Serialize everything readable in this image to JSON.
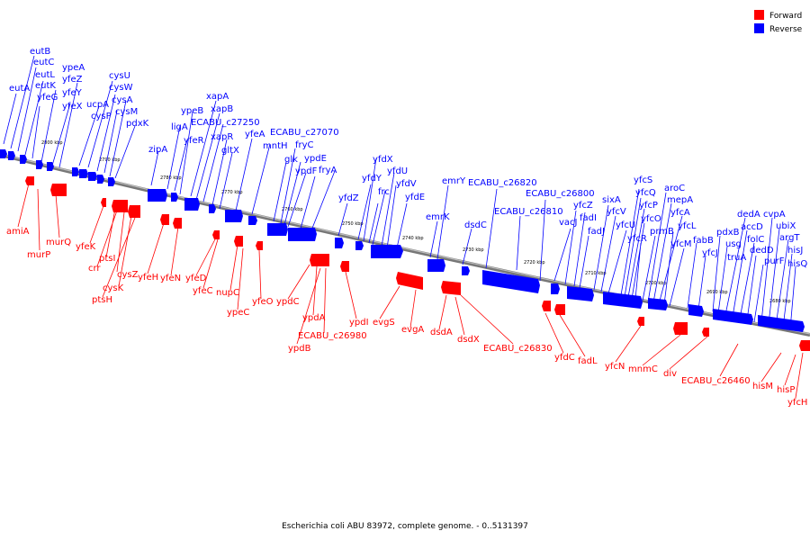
{
  "legend": [
    {
      "label": "Forward",
      "color": "#ff0000"
    },
    {
      "label": "Reverse",
      "color": "#0000ff"
    }
  ],
  "caption": "Escherichia coli ABU 83972, complete genome. - 0..5131397",
  "ticks": [
    "2800 kbp",
    "2790 kbp",
    "2780 kbp",
    "2770 kbp",
    "2760 kbp",
    "2750 kbp",
    "2740 kbp",
    "2730 kbp",
    "2720 kbp",
    "2710 kbp",
    "2700 kbp",
    "2690 kbp",
    "2680 kbp"
  ],
  "colors": {
    "forward": "#ff0000",
    "reverse": "#0000ff",
    "backbone": "#777777"
  },
  "reverse_genes": [
    "eutB",
    "eutC",
    "eutL",
    "eutA",
    "eutK",
    "yfeG",
    "ypeA",
    "yfeZ",
    "yfeY",
    "yfeX",
    "cysU",
    "cysW",
    "ucpA",
    "cysA",
    "cysP",
    "cysM",
    "pdxK",
    "zipA",
    "ligA",
    "ypeB",
    "yfeR",
    "xapA",
    "xapB",
    "ECABU_c27250",
    "xapR",
    "gltX",
    "yfeA",
    "ECABU_c27070",
    "mntH",
    "fryC",
    "glk",
    "ypdE",
    "ypdF",
    "fryA",
    "yfdZ",
    "yfdX",
    "yfdY",
    "yfdU",
    "frc",
    "yfdV",
    "yfdE",
    "emrY",
    "emrK",
    "dsdC",
    "ECABU_c26820",
    "ECABU_c26810",
    "ECABU_c26800",
    "vacJ",
    "yfcZ",
    "fadI",
    "fadJ",
    "sixA",
    "yfcV",
    "yfcU",
    "yfcS",
    "yfcQ",
    "yfcP",
    "yfcR",
    "yfcO",
    "aroC",
    "prmB",
    "mepA",
    "yfcA",
    "yfcL",
    "yfcM",
    "fabB",
    "yfcJ",
    "dedA",
    "pdxB",
    "accD",
    "usg",
    "folC",
    "truA",
    "dedD",
    "cvpA",
    "ubiX",
    "purF",
    "argT",
    "hisJ",
    "hisQ"
  ],
  "forward_genes": [
    "amiA",
    "murQ",
    "murP",
    "yfeK",
    "ptsI",
    "crr",
    "cysZ",
    "cysK",
    "ptsH",
    "yfeH",
    "yfeN",
    "yfeD",
    "yfeC",
    "nupC",
    "ypeC",
    "yfeO",
    "ypdC",
    "ypdA",
    "ypdB",
    "ECABU_c26980",
    "ypdI",
    "evgS",
    "evgA",
    "dsdA",
    "dsdX",
    "ECABU_c26830",
    "yfdC",
    "fadL",
    "yfcN",
    "mnmC",
    "div",
    "ECABU_c26460",
    "hisM",
    "hisP",
    "yfcH"
  ]
}
